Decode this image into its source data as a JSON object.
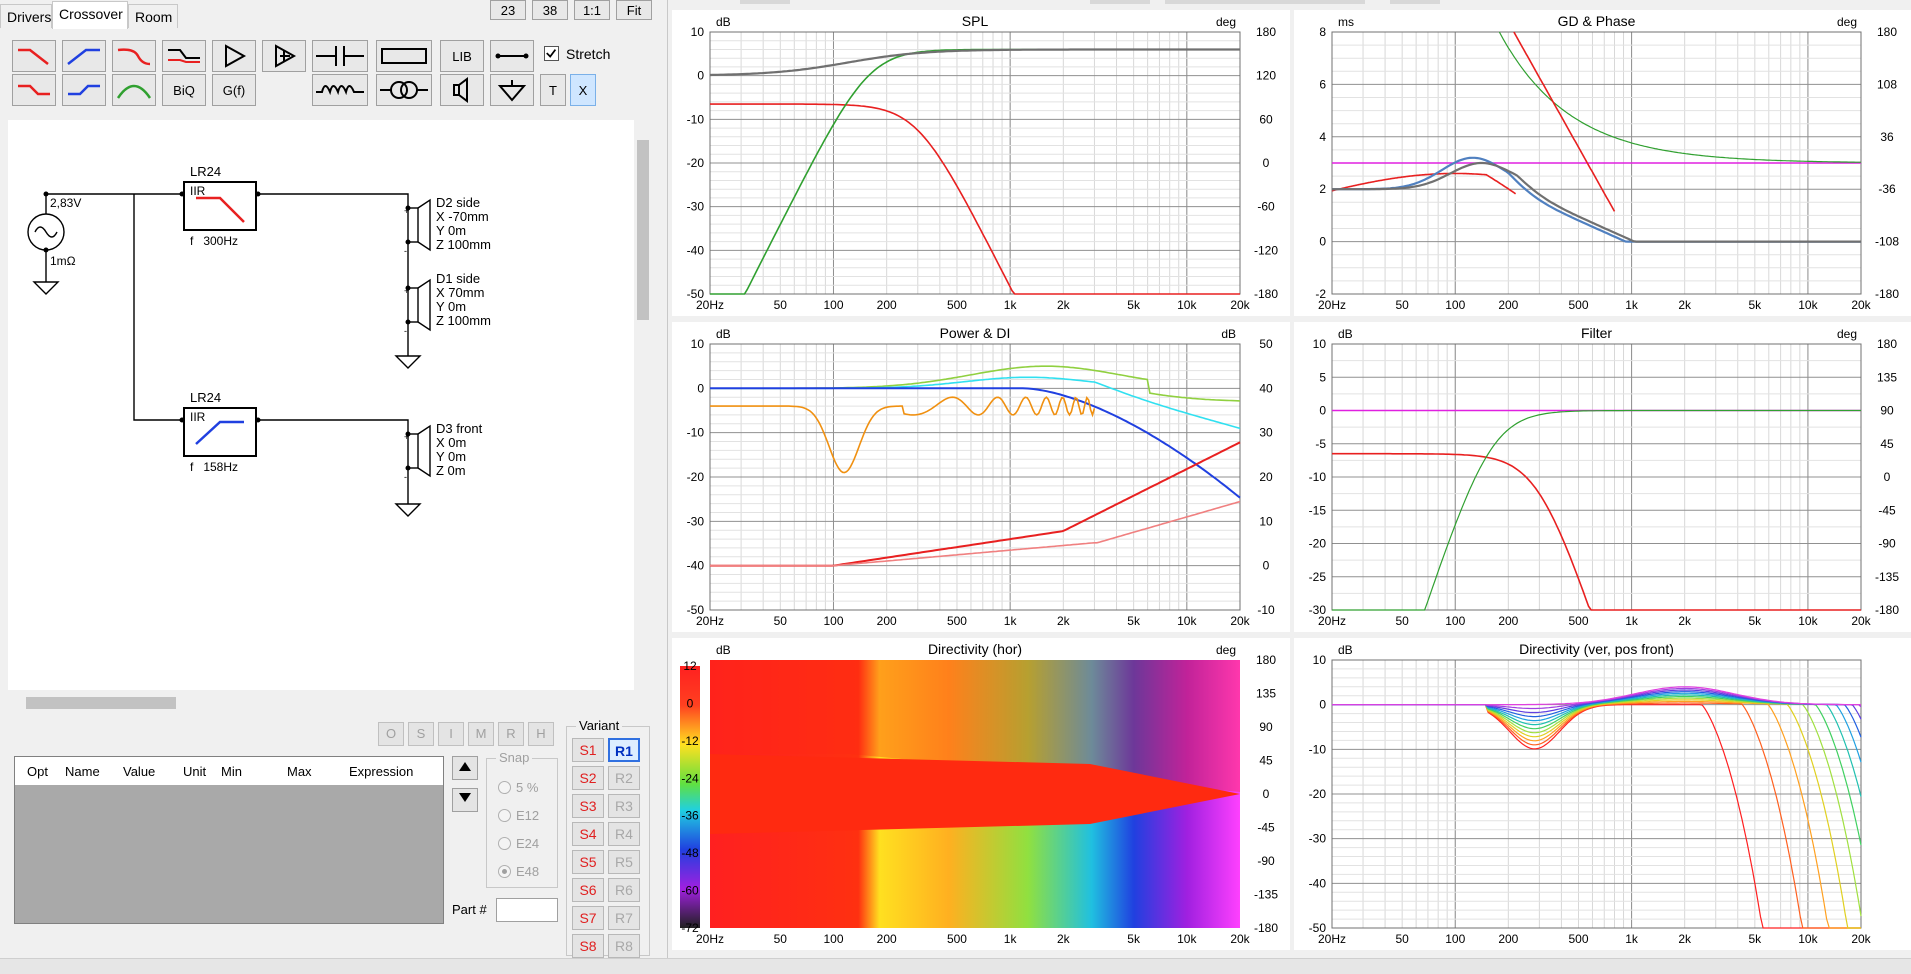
{
  "header_buttons": [
    "23",
    "38",
    "1:1",
    "Fit"
  ],
  "tabs": [
    "Drivers",
    "Crossover",
    "Room"
  ],
  "toolbar": {
    "lib_label": "LIB",
    "stretch_label": "Stretch",
    "biq_label": "BiQ",
    "gf_label": "G(f)",
    "t_label": "T",
    "x_label": "X"
  },
  "schematic": {
    "source_voltage": "2,83V",
    "source_impedance": "1mΩ",
    "filters": [
      {
        "name": "LR24",
        "type": "IIR",
        "freq_label": "f   300Hz"
      },
      {
        "name": "LR24",
        "type": "IIR",
        "freq_label": "f   158Hz"
      }
    ],
    "drivers": [
      {
        "name": "D2 side",
        "x": "X -70mm",
        "y": "Y 0m",
        "z": "Z 100mm"
      },
      {
        "name": "D1 side",
        "x": "X 70mm",
        "y": "Y 0m",
        "z": "Z 100mm"
      },
      {
        "name": "D3 front",
        "x": "X 0m",
        "y": "Y 0m",
        "z": "Z 0m"
      }
    ]
  },
  "opt_buttons": [
    "O",
    "S",
    "I",
    "M",
    "R",
    "H"
  ],
  "param_table": {
    "headers": [
      "Opt",
      "Name",
      "Value",
      "Unit",
      "Min",
      "Max",
      "Expression"
    ]
  },
  "snap": {
    "label": "Snap",
    "options": [
      "5 %",
      "E12",
      "E24",
      "E48"
    ],
    "selected": "E48"
  },
  "variant": {
    "label": "Variant",
    "s_buttons": [
      "S1",
      "S2",
      "S3",
      "S4",
      "S5",
      "S6",
      "S7",
      "S8"
    ],
    "r_buttons": [
      "R1",
      "R2",
      "R3",
      "R4",
      "R5",
      "R6",
      "R7",
      "R8"
    ],
    "active": "R1"
  },
  "part_label": "Part #",
  "freq_ticks": [
    "20Hz",
    "50",
    "100",
    "200",
    "500",
    "1k",
    "2k",
    "5k",
    "10k",
    "20k"
  ],
  "panels": {
    "spl": {
      "title": "SPL",
      "left_unit": "dB",
      "right_unit": "deg",
      "left_ticks": [
        "10",
        "0",
        "-10",
        "-20",
        "-30",
        "-40",
        "-50"
      ],
      "right_ticks": [
        "180",
        "120",
        "60",
        "0",
        "-60",
        "-120",
        "-180"
      ]
    },
    "gd": {
      "title": "GD & Phase",
      "left_unit": "ms",
      "right_unit": "deg",
      "left_ticks": [
        "8",
        "6",
        "4",
        "2",
        "0",
        "-2"
      ],
      "right_ticks": [
        "180",
        "108",
        "36",
        "-36",
        "-108",
        "-180"
      ]
    },
    "power": {
      "title": "Power & DI",
      "left_unit": "dB",
      "right_unit": "dB",
      "left_ticks": [
        "10",
        "0",
        "-10",
        "-20",
        "-30",
        "-40",
        "-50"
      ],
      "right_ticks": [
        "50",
        "40",
        "30",
        "20",
        "10",
        "0",
        "-10"
      ]
    },
    "filter": {
      "title": "Filter",
      "left_unit": "dB",
      "right_unit": "deg",
      "left_ticks": [
        "10",
        "5",
        "0",
        "-5",
        "-10",
        "-15",
        "-20",
        "-25",
        "-30"
      ],
      "right_ticks": [
        "180",
        "135",
        "90",
        "45",
        "0",
        "-45",
        "-90",
        "-135",
        "-180"
      ]
    },
    "dirhor": {
      "title": "Directivity (hor)",
      "left_unit": "dB",
      "right_unit": "deg",
      "scale_ticks": [
        "12",
        "0",
        "-12",
        "-24",
        "-36",
        "-48",
        "-60",
        "-72"
      ],
      "right_ticks": [
        "180",
        "135",
        "90",
        "45",
        "0",
        "-45",
        "-90",
        "-135",
        "-180"
      ]
    },
    "dirver": {
      "title": "Directivity (ver, pos front)",
      "left_unit": "dB",
      "left_ticks": [
        "10",
        "0",
        "-10",
        "-20",
        "-30",
        "-40",
        "-50"
      ]
    }
  },
  "colors": {
    "red": "#e82020",
    "green": "#30a030",
    "blue": "#2040e0",
    "gray": "#707070",
    "magenta": "#e020e0",
    "orange": "#f09010",
    "cyan": "#30e0f0",
    "lime": "#90d040",
    "pink": "#f08080",
    "darkgreen": "#308030",
    "steelblue": "#5080c0"
  }
}
